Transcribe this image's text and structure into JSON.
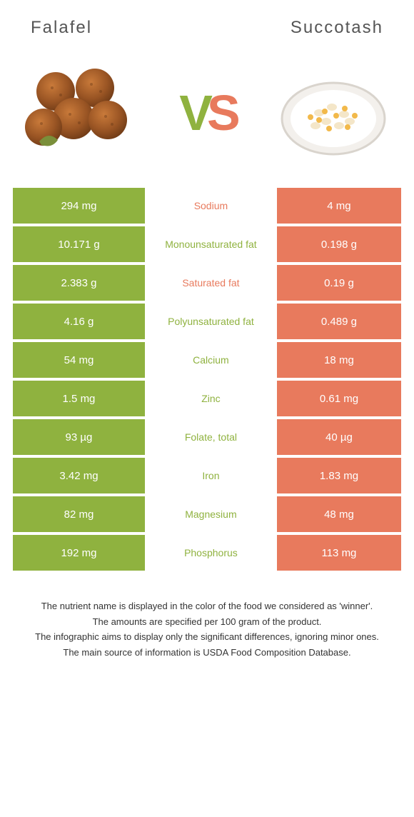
{
  "titles": {
    "left": "Falafel",
    "right": "Succotash"
  },
  "colors": {
    "left_bg": "#8fb23f",
    "right_bg": "#e87a5d",
    "left_text": "#8fb23f",
    "right_text": "#e87a5d",
    "cell_text": "#ffffff",
    "title_text": "#555555",
    "footer_text": "#333333"
  },
  "vs": {
    "v": "V",
    "s": "S"
  },
  "rows": [
    {
      "left": "294 mg",
      "label": "Sodium",
      "right": "4 mg",
      "winner": "right"
    },
    {
      "left": "10.171 g",
      "label": "Monounsaturated fat",
      "right": "0.198 g",
      "winner": "left"
    },
    {
      "left": "2.383 g",
      "label": "Saturated fat",
      "right": "0.19 g",
      "winner": "right"
    },
    {
      "left": "4.16 g",
      "label": "Polyunsaturated fat",
      "right": "0.489 g",
      "winner": "left"
    },
    {
      "left": "54 mg",
      "label": "Calcium",
      "right": "18 mg",
      "winner": "left"
    },
    {
      "left": "1.5 mg",
      "label": "Zinc",
      "right": "0.61 mg",
      "winner": "left"
    },
    {
      "left": "93 µg",
      "label": "Folate, total",
      "right": "40 µg",
      "winner": "left"
    },
    {
      "left": "3.42 mg",
      "label": "Iron",
      "right": "1.83 mg",
      "winner": "left"
    },
    {
      "left": "82 mg",
      "label": "Magnesium",
      "right": "48 mg",
      "winner": "left"
    },
    {
      "left": "192 mg",
      "label": "Phosphorus",
      "right": "113 mg",
      "winner": "left"
    }
  ],
  "footer": [
    "The nutrient name is displayed in the color of the food we considered as 'winner'.",
    "The amounts are specified per 100 gram of the product.",
    "The infographic aims to display only the significant differences, ignoring minor ones.",
    "The main source of information is USDA Food Composition Database."
  ]
}
